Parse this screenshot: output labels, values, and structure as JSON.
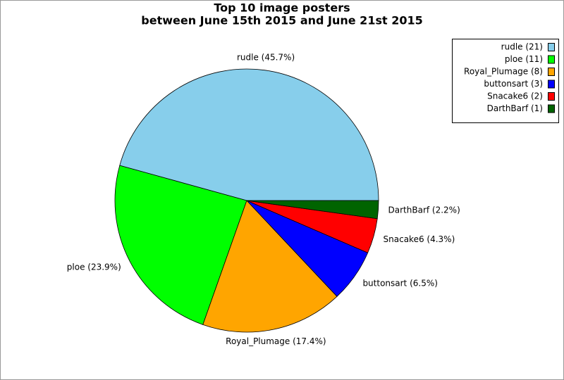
{
  "chart_data": {
    "type": "pie",
    "title": "Top 10 image posters",
    "subtitle": "between June 15th 2015 and June 21st 2015",
    "values": [
      45.7,
      23.9,
      17.4,
      6.5,
      4.3,
      2.2
    ],
    "value_labels": [
      "rudle (45.7%)",
      "ploe (23.9%)",
      "Royal_Plumage (17.4%)",
      "buttonsart (6.5%)",
      "Snacake6 (4.3%)",
      "DarthBarf (2.2%)"
    ],
    "legend_labels": [
      "rudle (21)",
      "ploe (11)",
      "Royal_Plumage (8)",
      "buttonsart (3)",
      "Snacake6 (2)",
      "DarthBarf (1)"
    ],
    "colors": [
      "#87ceeb",
      "#00ff00",
      "#ffa500",
      "#0000ff",
      "#ff0000",
      "#006400"
    ],
    "legend": "top-right"
  }
}
